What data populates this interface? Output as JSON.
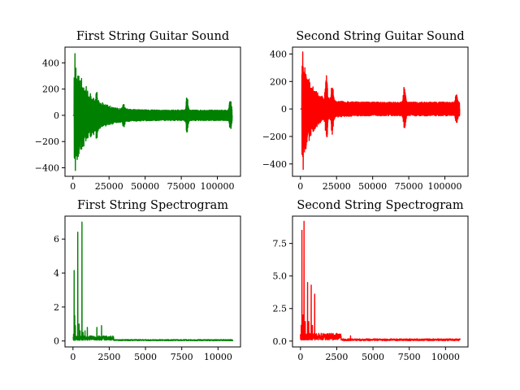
{
  "chart_data": [
    {
      "type": "line",
      "title": "First String Guitar Sound",
      "color": "#008000",
      "xlim": [
        -5500,
        116000
      ],
      "ylim": [
        -465,
        520
      ],
      "xticks": [
        0,
        25000,
        50000,
        75000,
        100000
      ],
      "xtick_labels": [
        "0",
        "25000",
        "50000",
        "75000",
        "100000"
      ],
      "yticks": [
        -400,
        -200,
        0,
        200,
        400
      ],
      "ytick_labels": [
        "−400",
        "−200",
        "0",
        "200",
        "400"
      ],
      "signal": {
        "kind": "waveform",
        "n": 110250,
        "onset": 800,
        "peak_max": 470,
        "peak_min": -420,
        "decay": 10000,
        "floor": 40,
        "bursts": [
          {
            "x": 16500,
            "amp": 80
          },
          {
            "x": 35000,
            "amp": 50
          },
          {
            "x": 79000,
            "amp": 120
          },
          {
            "x": 109000,
            "amp": 100
          }
        ]
      }
    },
    {
      "type": "line",
      "title": "Second String Guitar Sound",
      "color": "#ff0000",
      "xlim": [
        -5500,
        116000
      ],
      "ylim": [
        -490,
        450
      ],
      "xticks": [
        0,
        25000,
        50000,
        75000,
        100000
      ],
      "xtick_labels": [
        "0",
        "25000",
        "50000",
        "75000",
        "100000"
      ],
      "yticks": [
        -400,
        -200,
        0,
        200,
        400
      ],
      "ytick_labels": [
        "−400",
        "−200",
        "0",
        "200",
        "400"
      ],
      "signal": {
        "kind": "waveform",
        "n": 110250,
        "onset": 1000,
        "peak_max": 415,
        "peak_min": -440,
        "decay": 7000,
        "floor": 50,
        "bursts": [
          {
            "x": 18000,
            "amp": 200
          },
          {
            "x": 22000,
            "amp": 150
          },
          {
            "x": 72000,
            "amp": 150
          },
          {
            "x": 108000,
            "amp": 70
          }
        ]
      }
    },
    {
      "type": "line",
      "title": "First String Spectrogram",
      "color": "#008000",
      "xlim": [
        -550,
        11550
      ],
      "ylim": [
        -0.35,
        7.35
      ],
      "xticks": [
        0,
        2500,
        5000,
        7500,
        10000
      ],
      "xtick_labels": [
        "0",
        "2500",
        "5000",
        "7500",
        "10000"
      ],
      "yticks": [
        0,
        2,
        4,
        6
      ],
      "ytick_labels": [
        "0",
        "2",
        "4",
        "6"
      ],
      "signal": {
        "kind": "spectrum",
        "n": 11025,
        "floor": 0.05,
        "peaks": [
          {
            "x": 40,
            "y": 0.4
          },
          {
            "x": 80,
            "y": 4.15
          },
          {
            "x": 120,
            "y": 1.5
          },
          {
            "x": 165,
            "y": 0.9
          },
          {
            "x": 330,
            "y": 6.4
          },
          {
            "x": 420,
            "y": 1.0
          },
          {
            "x": 495,
            "y": 0.6
          },
          {
            "x": 620,
            "y": 7.0
          },
          {
            "x": 700,
            "y": 0.5
          },
          {
            "x": 830,
            "y": 0.6
          },
          {
            "x": 990,
            "y": 0.8
          },
          {
            "x": 1150,
            "y": 0.3
          },
          {
            "x": 1650,
            "y": 0.8
          },
          {
            "x": 1810,
            "y": 0.3
          },
          {
            "x": 1970,
            "y": 0.9
          },
          {
            "x": 2300,
            "y": 0.2
          },
          {
            "x": 2640,
            "y": 0.15
          }
        ]
      }
    },
    {
      "type": "line",
      "title": "Second String Spectrogram",
      "color": "#ff0000",
      "xlim": [
        -550,
        11550
      ],
      "ylim": [
        -0.45,
        9.6
      ],
      "xticks": [
        0,
        2500,
        5000,
        7500,
        10000
      ],
      "xtick_labels": [
        "0",
        "2500",
        "5000",
        "7500",
        "10000"
      ],
      "yticks": [
        0,
        2.5,
        5,
        7.5
      ],
      "ytick_labels": [
        "0.0",
        "2.5",
        "5.0",
        "7.5"
      ],
      "signal": {
        "kind": "spectrum",
        "n": 11025,
        "floor": 0.1,
        "peaks": [
          {
            "x": 50,
            "y": 1.2
          },
          {
            "x": 100,
            "y": 8.5
          },
          {
            "x": 180,
            "y": 2.0
          },
          {
            "x": 245,
            "y": 9.2
          },
          {
            "x": 330,
            "y": 1.5
          },
          {
            "x": 490,
            "y": 4.5
          },
          {
            "x": 570,
            "y": 1.5
          },
          {
            "x": 740,
            "y": 4.3
          },
          {
            "x": 820,
            "y": 1.2
          },
          {
            "x": 980,
            "y": 3.6
          },
          {
            "x": 1230,
            "y": 0.4
          },
          {
            "x": 1480,
            "y": 0.3
          },
          {
            "x": 1720,
            "y": 0.3
          },
          {
            "x": 1970,
            "y": 0.35
          },
          {
            "x": 2220,
            "y": 0.25
          },
          {
            "x": 3450,
            "y": 0.4
          }
        ]
      }
    }
  ]
}
